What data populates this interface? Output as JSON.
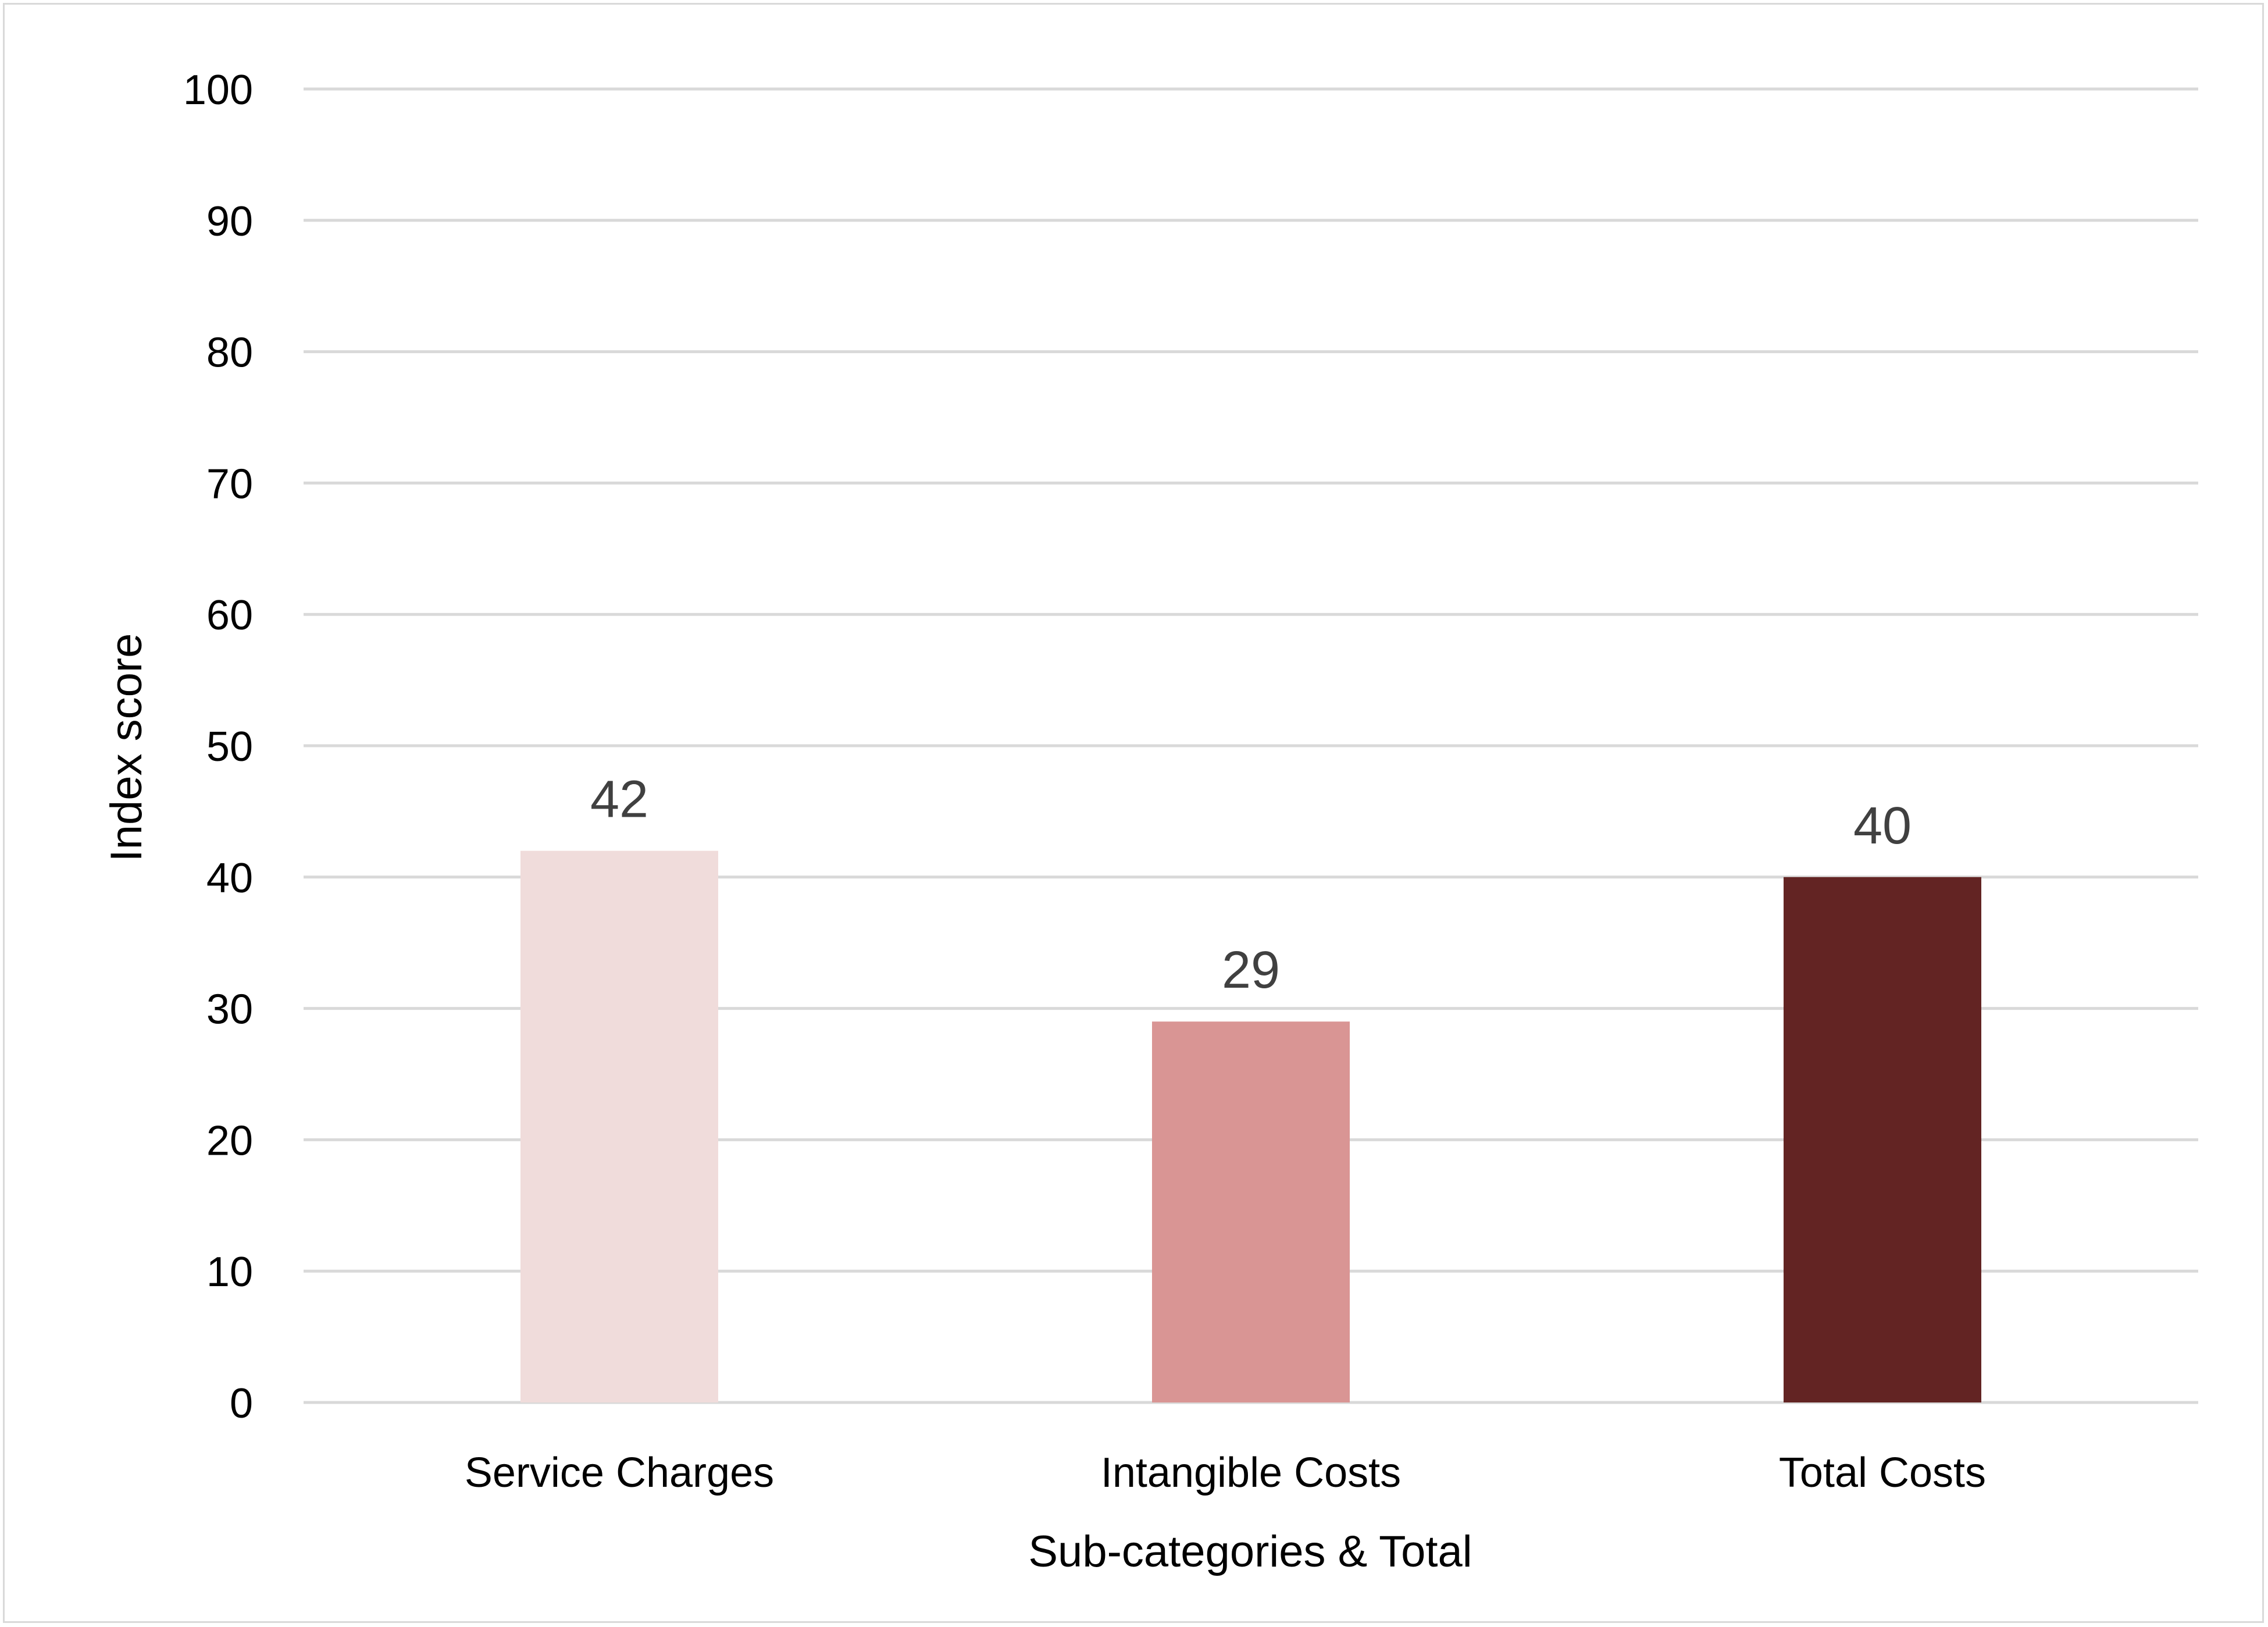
{
  "chart_data": {
    "type": "bar",
    "title": "",
    "categories": [
      "Service Charges",
      "Intangible Costs",
      "Total Costs"
    ],
    "values": [
      42,
      29,
      40
    ],
    "data_labels": [
      "42",
      "29",
      "40"
    ],
    "bar_colors": [
      "#f0dcdb",
      "#d99594",
      "#632423"
    ],
    "xlabel": "Sub-categories & Total",
    "ylabel": "Index score",
    "ylim": [
      0,
      100
    ],
    "yticks": [
      0,
      10,
      20,
      30,
      40,
      50,
      60,
      70,
      80,
      90,
      100
    ],
    "ytick_labels": [
      "0",
      "10",
      "20",
      "30",
      "40",
      "50",
      "60",
      "70",
      "80",
      "90",
      "100"
    ],
    "grid": true,
    "legend": "none"
  }
}
